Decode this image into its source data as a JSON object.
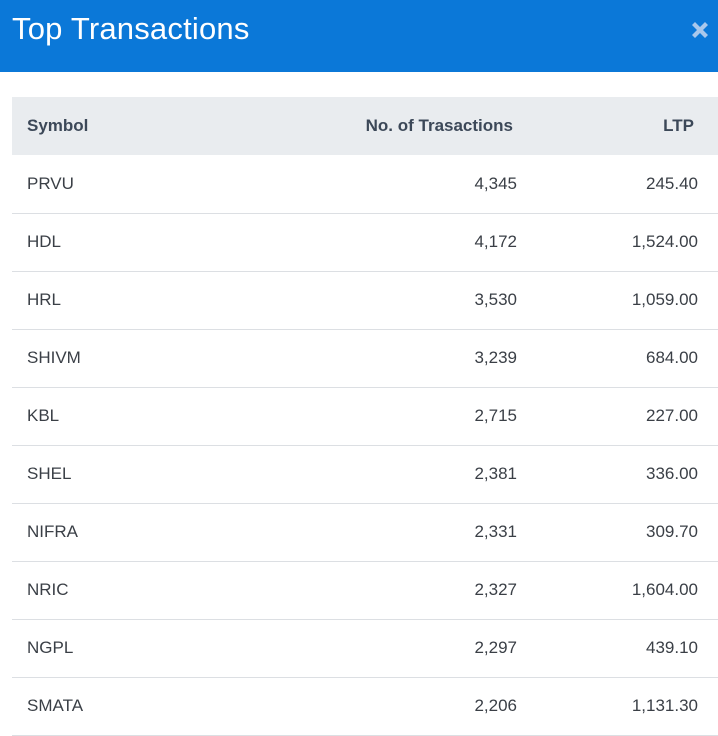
{
  "header": {
    "title": "Top Transactions",
    "close_icon": "close-icon",
    "background_color": "#0b78d8"
  },
  "table": {
    "columns": [
      "Symbol",
      "No. of Trasactions",
      "LTP"
    ],
    "rows": [
      {
        "symbol": "PRVU",
        "transactions": "4,345",
        "ltp": "245.40"
      },
      {
        "symbol": "HDL",
        "transactions": "4,172",
        "ltp": "1,524.00"
      },
      {
        "symbol": "HRL",
        "transactions": "3,530",
        "ltp": "1,059.00"
      },
      {
        "symbol": "SHIVM",
        "transactions": "3,239",
        "ltp": "684.00"
      },
      {
        "symbol": "KBL",
        "transactions": "2,715",
        "ltp": "227.00"
      },
      {
        "symbol": "SHEL",
        "transactions": "2,381",
        "ltp": "336.00"
      },
      {
        "symbol": "NIFRA",
        "transactions": "2,331",
        "ltp": "309.70"
      },
      {
        "symbol": "NRIC",
        "transactions": "2,327",
        "ltp": "1,604.00"
      },
      {
        "symbol": "NGPL",
        "transactions": "2,297",
        "ltp": "439.10"
      },
      {
        "symbol": "SMATA",
        "transactions": "2,206",
        "ltp": "1,131.30"
      }
    ]
  }
}
